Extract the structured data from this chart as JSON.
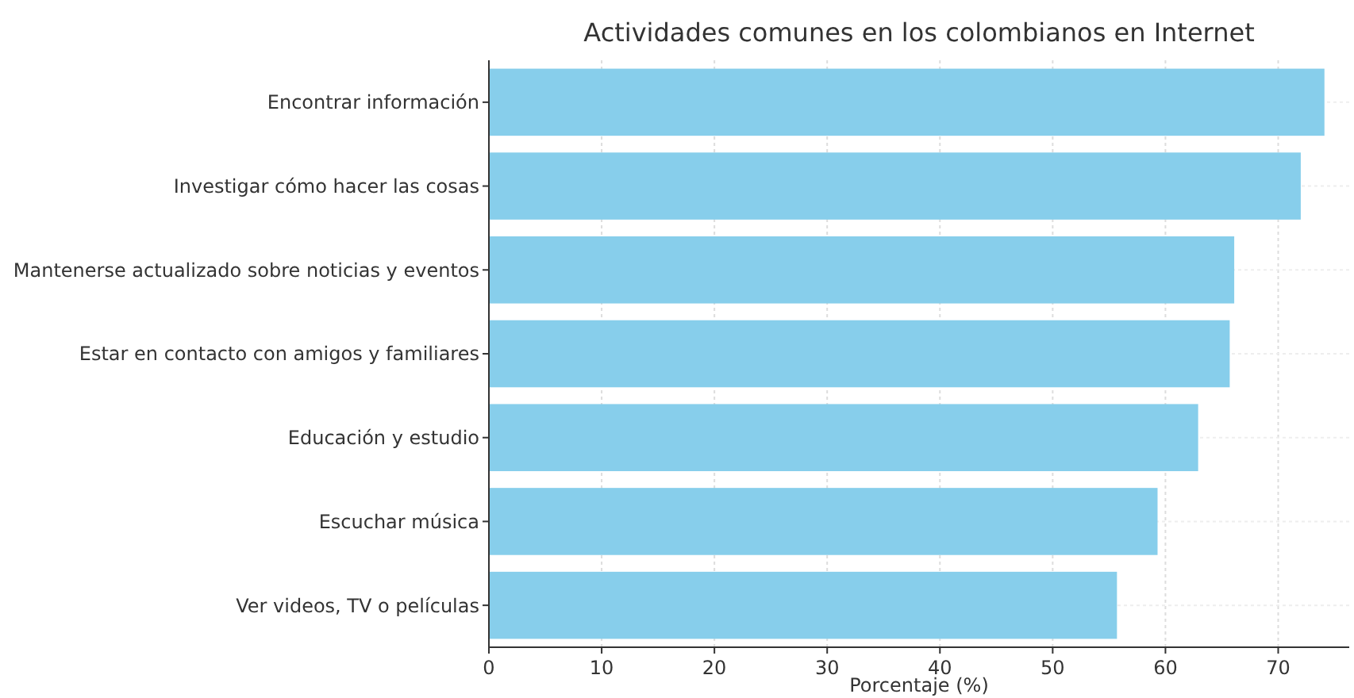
{
  "chart_data": {
    "type": "bar",
    "orientation": "horizontal",
    "title": "Actividades comunes en los colombianos en Internet",
    "xlabel": "Porcentaje (%)",
    "categories": [
      "Encontrar información",
      "Investigar cómo hacer las cosas",
      "Mantenerse actualizado sobre noticias y eventos",
      "Estar en contacto con amigos y familiares",
      "Educación y estudio",
      "Escuchar música",
      "Ver videos, TV o películas"
    ],
    "values": [
      74.1,
      72.0,
      66.1,
      65.7,
      62.9,
      59.3,
      55.7
    ],
    "color": "#87ceeb",
    "xlim": [
      0,
      76.3
    ],
    "xticks": [
      0,
      10,
      20,
      30,
      40,
      50,
      60,
      70
    ],
    "grid": true
  }
}
